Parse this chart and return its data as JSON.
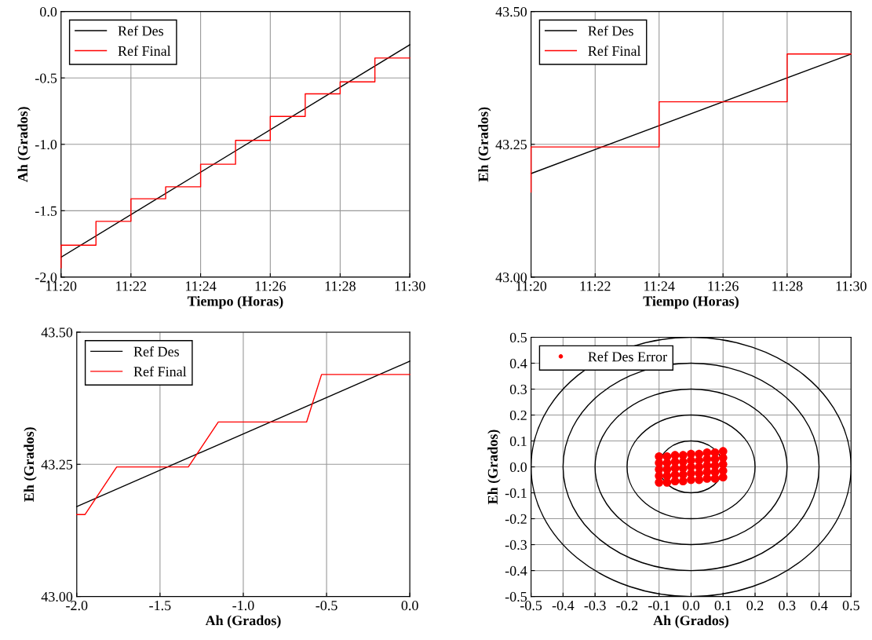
{
  "chart_data": [
    {
      "type": "line",
      "xlabel": "Tiempo (Horas)",
      "ylabel": "Ah (Grados)",
      "xlim": [
        11.3333,
        11.5
      ],
      "ylim": [
        -2.0,
        0.0
      ],
      "xticks": [
        {
          "value": 11.3333,
          "label": "11:20"
        },
        {
          "value": 11.3667,
          "label": "11:22"
        },
        {
          "value": 11.4,
          "label": "11:24"
        },
        {
          "value": 11.4333,
          "label": "11:26"
        },
        {
          "value": 11.4667,
          "label": "11:28"
        },
        {
          "value": 11.5,
          "label": "11:30"
        }
      ],
      "yticks": [
        {
          "value": -2,
          "label": "-2.0"
        },
        -1.5,
        {
          "value": -1,
          "label": "-1.0"
        },
        -0.5,
        {
          "value": 0,
          "label": "0.0"
        }
      ],
      "grid": true,
      "legend": "top left",
      "series": [
        {
          "name": "Ref Des",
          "color": "#000000",
          "x": [
            11.3333,
            11.5
          ],
          "values": [
            -1.85,
            -0.25
          ]
        },
        {
          "name": "Ref Final",
          "color": "#ff0000",
          "type": "step",
          "x": [
            11.3333,
            11.3333,
            11.35,
            11.3667,
            11.3833,
            11.4,
            11.4167,
            11.4333,
            11.45,
            11.4667,
            11.4833,
            11.5
          ],
          "values": [
            -1.93,
            -1.76,
            -1.58,
            -1.41,
            -1.32,
            -1.15,
            -0.97,
            -0.79,
            -0.62,
            -0.53,
            -0.35,
            -0.35
          ]
        }
      ]
    },
    {
      "type": "line",
      "xlabel": "Tiempo (Horas)",
      "ylabel": "Eh (Grados)",
      "xlim": [
        11.3333,
        11.5
      ],
      "ylim": [
        43.0,
        43.5
      ],
      "xticks": [
        {
          "value": 11.3333,
          "label": "11:20"
        },
        {
          "value": 11.3667,
          "label": "11:22"
        },
        {
          "value": 11.4,
          "label": "11:24"
        },
        {
          "value": 11.4333,
          "label": "11:26"
        },
        {
          "value": 11.4667,
          "label": "11:28"
        },
        {
          "value": 11.5,
          "label": "11:30"
        }
      ],
      "yticks": [
        {
          "value": 43.0,
          "label": "43.00"
        },
        {
          "value": 43.25,
          "label": "43.25"
        },
        {
          "value": 43.5,
          "label": "43.50"
        }
      ],
      "grid": true,
      "legend": "top left",
      "series": [
        {
          "name": "Ref Des",
          "color": "#000000",
          "x": [
            11.3333,
            11.5
          ],
          "values": [
            43.195,
            43.42
          ]
        },
        {
          "name": "Ref Final",
          "color": "#ff0000",
          "type": "step",
          "x": [
            11.3333,
            11.3333,
            11.4,
            11.4667,
            11.5
          ],
          "values": [
            43.16,
            43.245,
            43.33,
            43.42,
            43.42
          ]
        }
      ]
    },
    {
      "type": "line",
      "xlabel": "Ah (Grados)",
      "ylabel": "Eh (Grados)",
      "xlim": [
        -2.0,
        0.0
      ],
      "ylim": [
        43.0,
        43.5
      ],
      "xticks": [
        {
          "value": -2,
          "label": "-2.0"
        },
        -1.5,
        {
          "value": -1,
          "label": "-1.0"
        },
        -0.5,
        {
          "value": 0,
          "label": "0.0"
        }
      ],
      "yticks": [
        {
          "value": 43.0,
          "label": "43.00"
        },
        {
          "value": 43.25,
          "label": "43.25"
        },
        {
          "value": 43.5,
          "label": "43.50"
        }
      ],
      "grid": true,
      "legend": "top left",
      "series": [
        {
          "name": "Ref Des",
          "color": "#000000",
          "x": [
            -2.0,
            0.0
          ],
          "values": [
            43.17,
            43.445
          ]
        },
        {
          "name": "Ref Final",
          "color": "#ff0000",
          "x": [
            -2.0,
            -1.95,
            -1.76,
            -1.33,
            -1.15,
            -0.62,
            -0.53,
            0.0
          ],
          "values": [
            43.155,
            43.155,
            43.245,
            43.245,
            43.33,
            43.33,
            43.42,
            43.42
          ]
        }
      ]
    },
    {
      "type": "scatter",
      "xlabel": "Ah (Grados)",
      "ylabel": "Eh (Grados)",
      "xlim": [
        -0.5,
        0.5
      ],
      "ylim": [
        -0.5,
        0.5
      ],
      "xticks": [
        -0.5,
        -0.4,
        -0.3,
        -0.2,
        -0.1,
        {
          "value": 0,
          "label": "0.0"
        },
        0.1,
        0.2,
        0.3,
        0.4,
        0.5
      ],
      "yticks": [
        -0.5,
        -0.4,
        -0.3,
        -0.2,
        -0.1,
        {
          "value": 0,
          "label": "0.0"
        },
        0.1,
        0.2,
        0.3,
        0.4,
        0.5
      ],
      "grid": true,
      "legend": "top left",
      "marker": "circle",
      "series": [
        {
          "name": "Ref Des Error",
          "color": "#ff0000",
          "x": [
            -0.1,
            -0.075,
            -0.05,
            -0.025,
            0,
            0.025,
            0.05,
            0.075,
            0.1,
            -0.1,
            -0.075,
            -0.05,
            -0.025,
            0,
            0.025,
            0.05,
            0.075,
            0.1,
            -0.1,
            -0.075,
            -0.05,
            -0.025,
            0,
            0.025,
            0.05,
            0.075,
            0.1,
            -0.1,
            -0.075,
            -0.05,
            -0.025,
            0,
            0.025,
            0.05,
            0.075,
            0.1,
            -0.1,
            -0.075,
            -0.05,
            -0.025,
            0,
            0.025,
            0.05,
            0.075,
            0.1
          ],
          "values": [
            -0.06,
            -0.06,
            -0.055,
            -0.055,
            -0.05,
            -0.05,
            -0.045,
            -0.045,
            -0.04,
            -0.035,
            -0.035,
            -0.03,
            -0.03,
            -0.025,
            -0.025,
            -0.02,
            -0.02,
            -0.015,
            -0.01,
            -0.01,
            -0.005,
            -0.005,
            0,
            0,
            0.005,
            0.005,
            0.01,
            0.015,
            0.015,
            0.02,
            0.02,
            0.025,
            0.025,
            0.03,
            0.03,
            0.035,
            0.04,
            0.04,
            0.045,
            0.045,
            0.05,
            0.05,
            0.055,
            0.055,
            0.06
          ]
        }
      ]
    }
  ]
}
